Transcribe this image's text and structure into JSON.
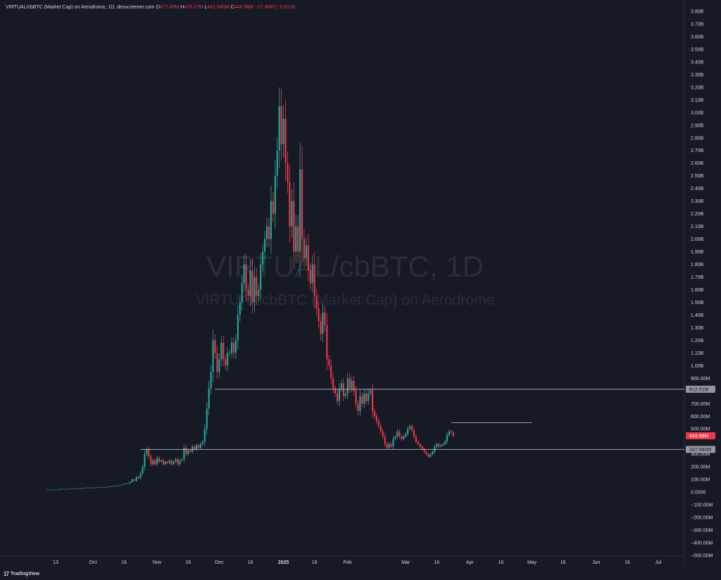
{
  "header": {
    "symbol": "VIRTUAL/cbBTC (Market Cap) on Aerodrome, 1D, dexscreener.com",
    "o_label": "O",
    "o_value": "472.45M",
    "h_label": "H",
    "h_value": "479.27M",
    "l_label": "L",
    "l_value": "441.040M",
    "c_label": "C",
    "c_value": "444.98M",
    "change": "−27.46M (−5.81%)"
  },
  "watermark": {
    "line1": "VIRTUAL/cbBTC, 1D",
    "line2": "VIRTUAL/cbBTC (Market Cap) on Aerodrome"
  },
  "footer": {
    "brand": "TradingView",
    "logo": "17"
  },
  "colors": {
    "background": "#161a25",
    "up": "#26a69a",
    "down": "#f23645",
    "line": "#c8cad0",
    "text": "#d1d4dc",
    "watermark": "#2a2e39"
  },
  "chart_data": {
    "type": "candlestick",
    "title": "VIRTUAL/cbBTC, 1D",
    "ylim": [
      -500000000,
      3800000000
    ],
    "y_ticks": [
      {
        "value": 3800000000,
        "label": "3.80B"
      },
      {
        "value": 3700000000,
        "label": "3.70B"
      },
      {
        "value": 3600000000,
        "label": "3.60B"
      },
      {
        "value": 3500000000,
        "label": "3.50B"
      },
      {
        "value": 3400000000,
        "label": "3.40B"
      },
      {
        "value": 3300000000,
        "label": "3.30B"
      },
      {
        "value": 3200000000,
        "label": "3.20B"
      },
      {
        "value": 3100000000,
        "label": "3.10B"
      },
      {
        "value": 3000000000,
        "label": "3.00B"
      },
      {
        "value": 2900000000,
        "label": "2.90B"
      },
      {
        "value": 2800000000,
        "label": "2.80B"
      },
      {
        "value": 2700000000,
        "label": "2.70B"
      },
      {
        "value": 2600000000,
        "label": "2.60B"
      },
      {
        "value": 2500000000,
        "label": "2.50B"
      },
      {
        "value": 2400000000,
        "label": "2.40B"
      },
      {
        "value": 2300000000,
        "label": "2.30B"
      },
      {
        "value": 2200000000,
        "label": "2.20B"
      },
      {
        "value": 2100000000,
        "label": "2.10B"
      },
      {
        "value": 2000000000,
        "label": "2.00B"
      },
      {
        "value": 1900000000,
        "label": "1.90B"
      },
      {
        "value": 1800000000,
        "label": "1.80B"
      },
      {
        "value": 1700000000,
        "label": "1.70B"
      },
      {
        "value": 1600000000,
        "label": "1.60B"
      },
      {
        "value": 1500000000,
        "label": "1.50B"
      },
      {
        "value": 1400000000,
        "label": "1.40B"
      },
      {
        "value": 1300000000,
        "label": "1.30B"
      },
      {
        "value": 1200000000,
        "label": "1.20B"
      },
      {
        "value": 1100000000,
        "label": "1.10B"
      },
      {
        "value": 1000000000,
        "label": "1.00B"
      },
      {
        "value": 900000000,
        "label": "900.00M"
      },
      {
        "value": 700000000,
        "label": "700.00M"
      },
      {
        "value": 600000000,
        "label": "600.00M"
      },
      {
        "value": 500000000,
        "label": "500.00M"
      },
      {
        "value": 300000000,
        "label": "300.00M"
      },
      {
        "value": 200000000,
        "label": "200.00M"
      },
      {
        "value": 100000000,
        "label": "100.00M"
      },
      {
        "value": 0,
        "label": "0.0000"
      },
      {
        "value": -100000000,
        "label": "−100.00M"
      },
      {
        "value": -200000000,
        "label": "−200.00M"
      },
      {
        "value": -300000000,
        "label": "−300.00M"
      },
      {
        "value": -400000000,
        "label": "−400.00M"
      },
      {
        "value": -500000000,
        "label": "−500.00M"
      }
    ],
    "x_ticks": [
      {
        "date": "2024-09-13",
        "label": "13"
      },
      {
        "date": "2024-10-01",
        "label": "Oct"
      },
      {
        "date": "2024-10-16",
        "label": "16"
      },
      {
        "date": "2024-11-01",
        "label": "Nov"
      },
      {
        "date": "2024-11-16",
        "label": "16"
      },
      {
        "date": "2024-12-01",
        "label": "Dec"
      },
      {
        "date": "2024-12-16",
        "label": "16"
      },
      {
        "date": "2025-01-01",
        "label": "2025",
        "bold": true
      },
      {
        "date": "2025-01-16",
        "label": "16"
      },
      {
        "date": "2025-02-01",
        "label": "Feb"
      },
      {
        "date": "2025-03-01",
        "label": "Mar"
      },
      {
        "date": "2025-03-16",
        "label": "16"
      },
      {
        "date": "2025-04-01",
        "label": "Apr"
      },
      {
        "date": "2025-04-16",
        "label": "16"
      },
      {
        "date": "2025-05-01",
        "label": "May"
      },
      {
        "date": "2025-05-16",
        "label": "16"
      },
      {
        "date": "2025-06-01",
        "label": "Jun"
      },
      {
        "date": "2025-06-16",
        "label": "16"
      },
      {
        "date": "2025-07-01",
        "label": "Jul"
      }
    ],
    "price_labels": [
      {
        "value": 812510000,
        "label": "812.51M",
        "style": "line"
      },
      {
        "value": 444980000,
        "label": "444.98M",
        "style": "last"
      },
      {
        "value": 337060000,
        "label": "337.060M",
        "style": "line"
      }
    ],
    "levels": [
      {
        "value": 812510000,
        "from": "2024-11-29",
        "to": "2025-07-31",
        "label": "812.51M"
      },
      {
        "value": 337060000,
        "from": "2024-10-24",
        "to": "2025-07-31",
        "label": "337.060M"
      },
      {
        "value": 548000000,
        "from": "2025-03-23",
        "to": "2025-05-01"
      }
    ],
    "last_price": 444980000,
    "series": {
      "start": "2024-09-09",
      "interval": "1D",
      "points": [
        [
          0.02,
          0.02
        ],
        [
          0.02,
          0.02
        ],
        [
          0.02,
          0.02
        ],
        [
          0.02,
          0.02
        ],
        [
          0.02,
          0.02
        ],
        [
          0.02,
          0.02
        ],
        [
          0.02,
          0.025
        ],
        [
          0.025,
          0.025
        ],
        [
          0.025,
          0.025
        ],
        [
          0.025,
          0.025
        ],
        [
          0.025,
          0.025
        ],
        [
          0.025,
          0.027
        ],
        [
          0.027,
          0.03
        ],
        [
          0.03,
          0.03
        ],
        [
          0.03,
          0.028
        ],
        [
          0.028,
          0.03
        ],
        [
          0.03,
          0.03
        ],
        [
          0.03,
          0.032
        ],
        [
          0.032,
          0.035
        ],
        [
          0.035,
          0.035
        ],
        [
          0.035,
          0.034
        ],
        [
          0.034,
          0.035
        ],
        [
          0.035,
          0.035
        ],
        [
          0.035,
          0.037
        ],
        [
          0.037,
          0.04
        ],
        [
          0.04,
          0.038
        ],
        [
          0.038,
          0.04
        ],
        [
          0.04,
          0.04
        ],
        [
          0.04,
          0.04
        ],
        [
          0.04,
          0.042
        ],
        [
          0.042,
          0.045
        ],
        [
          0.045,
          0.045
        ],
        [
          0.045,
          0.05
        ],
        [
          0.05,
          0.05
        ],
        [
          0.05,
          0.05
        ],
        [
          0.05,
          0.055
        ],
        [
          0.055,
          0.06
        ],
        [
          0.06,
          0.065
        ],
        [
          0.065,
          0.07
        ],
        [
          0.07,
          0.07
        ],
        [
          0.07,
          0.08
        ],
        [
          0.08,
          0.1
        ],
        [
          0.1,
          0.09
        ],
        [
          0.09,
          0.12
        ],
        [
          0.12,
          0.11
        ],
        [
          0.11,
          0.15
        ],
        [
          0.15,
          0.2
        ],
        [
          0.2,
          0.3
        ],
        [
          0.3,
          0.34
        ],
        [
          0.34,
          0.28
        ],
        [
          0.28,
          0.22
        ],
        [
          0.22,
          0.25
        ],
        [
          0.25,
          0.22
        ],
        [
          0.22,
          0.27
        ],
        [
          0.27,
          0.24
        ],
        [
          0.24,
          0.25
        ],
        [
          0.25,
          0.22
        ],
        [
          0.22,
          0.24
        ],
        [
          0.24,
          0.23
        ],
        [
          0.23,
          0.25
        ],
        [
          0.25,
          0.22
        ],
        [
          0.22,
          0.24
        ],
        [
          0.24,
          0.26
        ],
        [
          0.26,
          0.22
        ],
        [
          0.22,
          0.25
        ],
        [
          0.25,
          0.26
        ],
        [
          0.26,
          0.35
        ],
        [
          0.35,
          0.3
        ],
        [
          0.3,
          0.33
        ],
        [
          0.33,
          0.32
        ],
        [
          0.32,
          0.36
        ],
        [
          0.36,
          0.34
        ],
        [
          0.34,
          0.37
        ],
        [
          0.37,
          0.35
        ],
        [
          0.35,
          0.38
        ],
        [
          0.38,
          0.4
        ],
        [
          0.4,
          0.5
        ],
        [
          0.5,
          0.66
        ],
        [
          0.66,
          0.82
        ],
        [
          0.82,
          0.95
        ],
        [
          0.95,
          1.2
        ],
        [
          1.2,
          1.1
        ],
        [
          1.1,
          0.95
        ],
        [
          0.95,
          1.05
        ],
        [
          1.05,
          1.18
        ],
        [
          1.18,
          1.05
        ],
        [
          1.05,
          1.0
        ],
        [
          1.0,
          1.1
        ],
        [
          1.1,
          1.1
        ],
        [
          1.1,
          1.18
        ],
        [
          1.18,
          1.1
        ],
        [
          1.1,
          1.2
        ],
        [
          1.2,
          1.4
        ],
        [
          1.4,
          1.5
        ],
        [
          1.5,
          1.65
        ],
        [
          1.65,
          1.8
        ],
        [
          1.8,
          1.6
        ],
        [
          1.6,
          1.55
        ],
        [
          1.55,
          1.75
        ],
        [
          1.75,
          1.5
        ],
        [
          1.5,
          1.7
        ],
        [
          1.7,
          1.55
        ],
        [
          1.55,
          1.6
        ],
        [
          1.6,
          1.8
        ],
        [
          1.8,
          1.9
        ],
        [
          1.9,
          2.0
        ],
        [
          2.0,
          2.1
        ],
        [
          2.1,
          2.0
        ],
        [
          2.0,
          2.3
        ],
        [
          2.3,
          2.2
        ],
        [
          2.2,
          2.5
        ],
        [
          2.5,
          2.7
        ],
        [
          2.7,
          3.05
        ],
        [
          3.05,
          2.75
        ],
        [
          2.75,
          2.95
        ],
        [
          2.95,
          2.6
        ],
        [
          2.6,
          2.45
        ],
        [
          2.45,
          2.1
        ],
        [
          2.1,
          2.3
        ],
        [
          2.3,
          1.9
        ],
        [
          1.9,
          2.1
        ],
        [
          2.1,
          1.9
        ],
        [
          1.9,
          2.55
        ],
        [
          2.55,
          2.0
        ],
        [
          2.0,
          1.85
        ],
        [
          1.85,
          1.95
        ],
        [
          1.95,
          1.75
        ],
        [
          1.75,
          1.65
        ],
        [
          1.65,
          1.8
        ],
        [
          1.8,
          1.55
        ],
        [
          1.55,
          1.45
        ],
        [
          1.45,
          1.35
        ],
        [
          1.35,
          1.25
        ],
        [
          1.25,
          1.42
        ],
        [
          1.42,
          1.32
        ],
        [
          1.32,
          1.05
        ],
        [
          1.05,
          1.0
        ],
        [
          1.0,
          0.9
        ],
        [
          0.9,
          0.82
        ],
        [
          0.82,
          0.78
        ],
        [
          0.78,
          0.72
        ],
        [
          0.72,
          0.82
        ],
        [
          0.82,
          0.86
        ],
        [
          0.86,
          0.76
        ],
        [
          0.76,
          0.78
        ],
        [
          0.78,
          0.9
        ],
        [
          0.9,
          0.82
        ],
        [
          0.82,
          0.88
        ],
        [
          0.88,
          0.8
        ],
        [
          0.8,
          0.7
        ],
        [
          0.7,
          0.64
        ],
        [
          0.64,
          0.76
        ],
        [
          0.76,
          0.7
        ],
        [
          0.7,
          0.78
        ],
        [
          0.78,
          0.72
        ],
        [
          0.72,
          0.78
        ],
        [
          0.78,
          0.8
        ],
        [
          0.8,
          0.64
        ],
        [
          0.64,
          0.6
        ],
        [
          0.6,
          0.56
        ],
        [
          0.56,
          0.52
        ],
        [
          0.52,
          0.48
        ],
        [
          0.48,
          0.44
        ],
        [
          0.44,
          0.38
        ],
        [
          0.38,
          0.35
        ],
        [
          0.35,
          0.38
        ],
        [
          0.38,
          0.36
        ],
        [
          0.36,
          0.42
        ],
        [
          0.42,
          0.44
        ],
        [
          0.44,
          0.48
        ],
        [
          0.48,
          0.44
        ],
        [
          0.44,
          0.42
        ],
        [
          0.42,
          0.44
        ],
        [
          0.44,
          0.46
        ],
        [
          0.46,
          0.5
        ],
        [
          0.5,
          0.52
        ],
        [
          0.52,
          0.49
        ],
        [
          0.49,
          0.44
        ],
        [
          0.44,
          0.4
        ],
        [
          0.4,
          0.38
        ],
        [
          0.38,
          0.36
        ],
        [
          0.36,
          0.34
        ],
        [
          0.34,
          0.32
        ],
        [
          0.32,
          0.3
        ],
        [
          0.3,
          0.28
        ],
        [
          0.28,
          0.3
        ],
        [
          0.3,
          0.32
        ],
        [
          0.32,
          0.36
        ],
        [
          0.36,
          0.38
        ],
        [
          0.38,
          0.36
        ],
        [
          0.36,
          0.37
        ],
        [
          0.37,
          0.38
        ],
        [
          0.38,
          0.4
        ],
        [
          0.4,
          0.45
        ],
        [
          0.45,
          0.48
        ],
        [
          0.48,
          0.472
        ],
        [
          0.472,
          0.44498
        ]
      ]
    }
  }
}
